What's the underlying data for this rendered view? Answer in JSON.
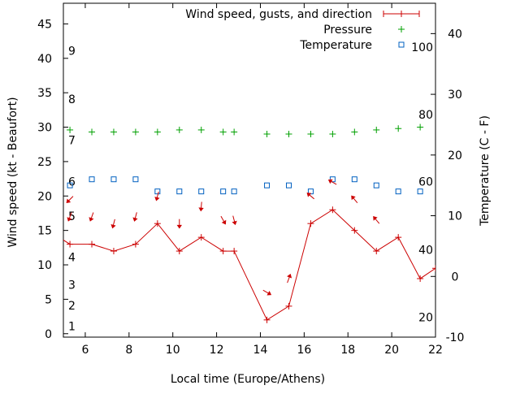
{
  "chart_data": {
    "type": "line",
    "xlabel": "Local time (Europe/Athens)",
    "ylabel": "Wind speed (kt - Beaufort)",
    "y2label": "Temperature (C - F)",
    "xlim": [
      5,
      22
    ],
    "ylim": [
      -0.5,
      48
    ],
    "y2lim": [
      -10,
      45
    ],
    "grid": false,
    "legend_position": "top-right",
    "xticks": [
      "6",
      "8",
      "10",
      "12",
      "14",
      "16",
      "18",
      "20",
      "22"
    ],
    "yticks": [
      "0",
      "5",
      "10",
      "15",
      "20",
      "25",
      "30",
      "35",
      "40",
      "45"
    ],
    "y2ticks": [
      "-10",
      "0",
      "10",
      "20",
      "30",
      "40"
    ],
    "beaufort_labels": [
      {
        "text": "1",
        "y": 1.1
      },
      {
        "text": "2",
        "y": 4.1
      },
      {
        "text": "3",
        "y": 7.1
      },
      {
        "text": "4",
        "y": 11.1
      },
      {
        "text": "5",
        "y": 17.1
      },
      {
        "text": "6",
        "y": 22.1
      },
      {
        "text": "7",
        "y": 28.1
      },
      {
        "text": "8",
        "y": 34.1
      },
      {
        "text": "9",
        "y": 41.1
      }
    ],
    "fahrenheit_labels": [
      {
        "text": "20",
        "y2": -6.7
      },
      {
        "text": "40",
        "y2": 4.4
      },
      {
        "text": "60",
        "y2": 15.6
      },
      {
        "text": "80",
        "y2": 26.7
      },
      {
        "text": "100",
        "y2": 37.8
      }
    ],
    "series": [
      {
        "name": "Wind speed, gusts, and direction",
        "color": "#cc0000",
        "marker": "plus",
        "axis": "y",
        "x": [
          4.3,
          5.3,
          6.3,
          7.3,
          8.3,
          9.3,
          10.3,
          11.3,
          12.3,
          12.8,
          14.3,
          15.3,
          16.3,
          17.3,
          18.3,
          19.3,
          20.3,
          21.3,
          22.0
        ],
        "values": [
          15,
          13,
          13,
          12,
          13,
          16,
          12,
          14,
          12,
          12,
          2,
          4,
          16,
          18,
          15,
          12,
          14,
          8,
          9.5
        ]
      },
      {
        "name": "Pressure",
        "color": "#00a000",
        "marker": "plus",
        "axis": "y",
        "x": [
          5.3,
          6.3,
          7.3,
          8.3,
          9.3,
          10.3,
          11.3,
          12.3,
          12.8,
          14.3,
          15.3,
          16.3,
          17.3,
          18.3,
          19.3,
          20.3,
          21.3
        ],
        "values": [
          29.6,
          29.3,
          29.3,
          29.3,
          29.3,
          29.6,
          29.6,
          29.3,
          29.3,
          29.0,
          29.0,
          29.0,
          29.0,
          29.3,
          29.6,
          29.8,
          30.0
        ]
      },
      {
        "name": "Temperature",
        "color": "#0060c0",
        "marker": "square",
        "axis": "y2",
        "x": [
          5.3,
          6.3,
          7.3,
          8.3,
          9.3,
          10.3,
          11.3,
          12.3,
          12.8,
          14.3,
          15.3,
          16.3,
          17.3,
          18.3,
          19.3,
          20.3,
          21.3
        ],
        "values": [
          15,
          16,
          16,
          16,
          14,
          14,
          14,
          14,
          14,
          15,
          15,
          14,
          16,
          16,
          15,
          14,
          14
        ]
      }
    ],
    "gust_arrows": {
      "color": "#cc0000",
      "points": [
        {
          "x": 5.3,
          "y": 19.5,
          "dir": 225
        },
        {
          "x": 5.3,
          "y": 17.0,
          "dir": 200
        },
        {
          "x": 6.3,
          "y": 17.0,
          "dir": 200
        },
        {
          "x": 7.3,
          "y": 16.0,
          "dir": 195
        },
        {
          "x": 8.3,
          "y": 17.0,
          "dir": 195
        },
        {
          "x": 9.3,
          "y": 20.0,
          "dir": 195
        },
        {
          "x": 10.3,
          "y": 16.0,
          "dir": 180
        },
        {
          "x": 11.3,
          "y": 18.5,
          "dir": 185
        },
        {
          "x": 12.3,
          "y": 16.5,
          "dir": 150
        },
        {
          "x": 12.8,
          "y": 16.5,
          "dir": 165
        },
        {
          "x": 14.3,
          "y": 6.0,
          "dir": 120
        },
        {
          "x": 15.3,
          "y": 8.0,
          "dir": 20
        },
        {
          "x": 16.3,
          "y": 20.0,
          "dir": 310
        },
        {
          "x": 17.3,
          "y": 22.0,
          "dir": 300
        },
        {
          "x": 18.3,
          "y": 19.5,
          "dir": 320
        },
        {
          "x": 19.3,
          "y": 16.5,
          "dir": 320
        }
      ]
    }
  }
}
